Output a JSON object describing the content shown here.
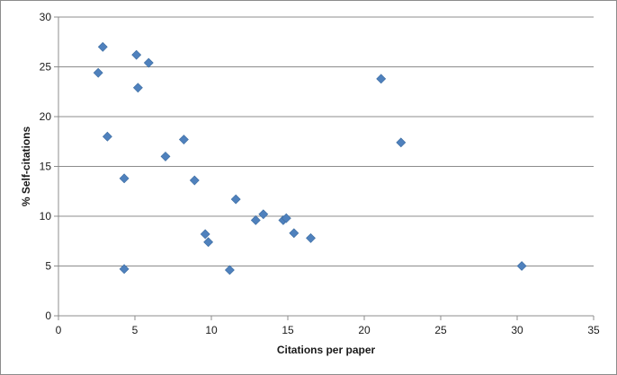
{
  "chart_data": {
    "type": "scatter",
    "title": "",
    "xlabel": "Citations per paper",
    "ylabel": "% Self-citations",
    "xlim": [
      0,
      35
    ],
    "ylim": [
      0,
      30
    ],
    "xticks": [
      0,
      5,
      10,
      15,
      20,
      25,
      30,
      35
    ],
    "yticks": [
      0,
      5,
      10,
      15,
      20,
      25,
      30
    ],
    "grid": "horizontal",
    "marker": "diamond",
    "color": "#4f81bd",
    "points": [
      {
        "x": 2.6,
        "y": 24.4
      },
      {
        "x": 2.9,
        "y": 27.0
      },
      {
        "x": 3.2,
        "y": 18.0
      },
      {
        "x": 4.3,
        "y": 13.8
      },
      {
        "x": 4.3,
        "y": 4.7
      },
      {
        "x": 5.1,
        "y": 26.2
      },
      {
        "x": 5.2,
        "y": 22.9
      },
      {
        "x": 5.9,
        "y": 25.4
      },
      {
        "x": 7.0,
        "y": 16.0
      },
      {
        "x": 8.2,
        "y": 17.7
      },
      {
        "x": 8.9,
        "y": 13.6
      },
      {
        "x": 9.6,
        "y": 8.2
      },
      {
        "x": 9.8,
        "y": 7.4
      },
      {
        "x": 11.2,
        "y": 4.6
      },
      {
        "x": 11.6,
        "y": 11.7
      },
      {
        "x": 12.9,
        "y": 9.6
      },
      {
        "x": 13.4,
        "y": 10.2
      },
      {
        "x": 14.7,
        "y": 9.6
      },
      {
        "x": 14.9,
        "y": 9.8
      },
      {
        "x": 15.4,
        "y": 8.3
      },
      {
        "x": 16.5,
        "y": 7.8
      },
      {
        "x": 21.1,
        "y": 23.8
      },
      {
        "x": 22.4,
        "y": 17.4
      },
      {
        "x": 30.3,
        "y": 5.0
      }
    ]
  }
}
